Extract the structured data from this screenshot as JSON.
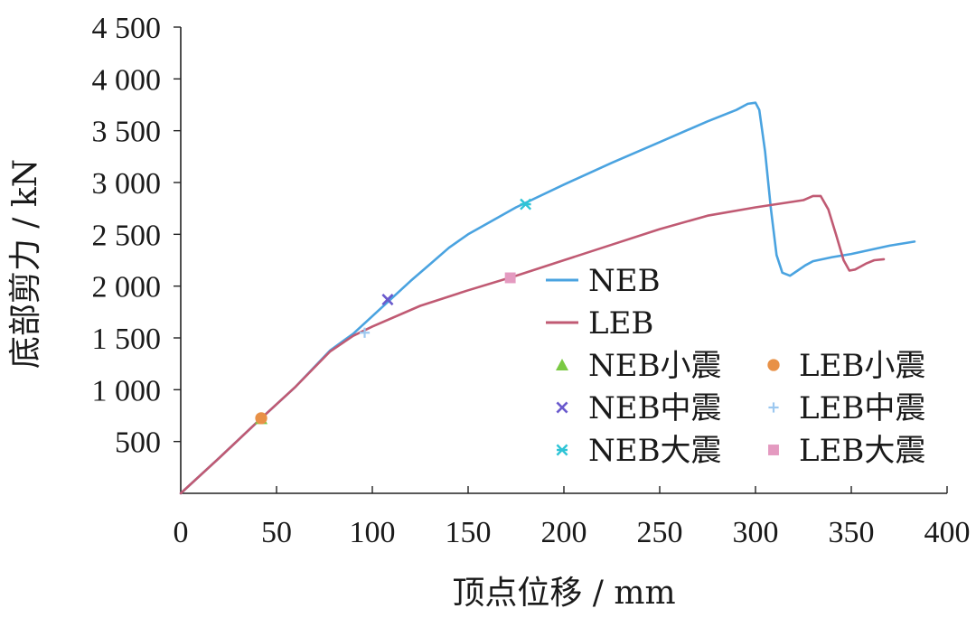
{
  "chart_data": {
    "type": "line",
    "title": "",
    "xlabel": "顶点位移 / mm",
    "ylabel": "底部剪力 / kN",
    "xlim": [
      0,
      400
    ],
    "ylim": [
      0,
      4500
    ],
    "x_ticks": [
      0,
      50,
      100,
      150,
      200,
      250,
      300,
      350,
      400
    ],
    "x_tick_labels": [
      "0",
      "50",
      "100",
      "150",
      "200",
      "250",
      "300",
      "350",
      "400"
    ],
    "y_ticks": [
      500,
      1000,
      1500,
      2000,
      2500,
      3000,
      3500,
      4000,
      4500
    ],
    "y_tick_labels": [
      "500",
      "1 000",
      "1 500",
      "2 000",
      "2 500",
      "3 000",
      "3 500",
      "4 000",
      "4 500"
    ],
    "grid": false,
    "legend_position": "right",
    "series": [
      {
        "name": "NEB",
        "color": "#4aa3e0",
        "x": [
          0,
          20,
          40,
          60,
          78,
          90,
          100,
          110,
          120,
          130,
          140,
          150,
          175,
          200,
          225,
          250,
          275,
          290,
          296,
          300,
          302,
          305,
          308,
          311,
          314,
          318,
          322,
          326,
          330,
          340,
          350,
          360,
          370,
          383
        ],
        "y": [
          0,
          340,
          690,
          1030,
          1380,
          1540,
          1710,
          1880,
          2050,
          2210,
          2370,
          2500,
          2760,
          2980,
          3190,
          3390,
          3590,
          3700,
          3760,
          3770,
          3700,
          3300,
          2750,
          2300,
          2130,
          2100,
          2150,
          2200,
          2240,
          2280,
          2310,
          2350,
          2390,
          2430
        ]
      },
      {
        "name": "LEB",
        "color": "#c05a73",
        "x": [
          0,
          20,
          40,
          60,
          78,
          90,
          100,
          125,
          150,
          175,
          200,
          225,
          250,
          275,
          300,
          325,
          330,
          334,
          338,
          342,
          346,
          349,
          352,
          355,
          358,
          362,
          367
        ],
        "y": [
          0,
          340,
          690,
          1030,
          1370,
          1520,
          1610,
          1810,
          1960,
          2100,
          2250,
          2400,
          2550,
          2680,
          2760,
          2830,
          2870,
          2870,
          2740,
          2500,
          2250,
          2150,
          2160,
          2190,
          2220,
          2250,
          2260
        ]
      }
    ],
    "markers": [
      {
        "name": "NEB小震",
        "shape": "triangle",
        "color": "#7ac943",
        "x": 42,
        "y": 720
      },
      {
        "name": "LEB小震",
        "shape": "circle",
        "color": "#e89147",
        "x": 42,
        "y": 725
      },
      {
        "name": "NEB中震",
        "shape": "x",
        "color": "#6a5acd",
        "x": 108,
        "y": 1870
      },
      {
        "name": "LEB中震",
        "shape": "plus",
        "color": "#9cc8f0",
        "x": 96,
        "y": 1550
      },
      {
        "name": "NEB大震",
        "shape": "asterisk",
        "color": "#2ec4d6",
        "x": 180,
        "y": 2790
      },
      {
        "name": "LEB大震",
        "shape": "square",
        "color": "#e49ac0",
        "x": 172,
        "y": 2080
      }
    ]
  }
}
